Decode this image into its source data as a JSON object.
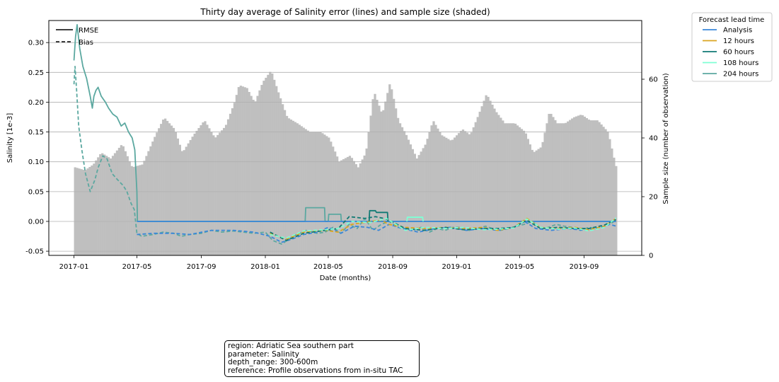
{
  "chart_data": {
    "type": "line",
    "title": "Thirty day average of Salinity error (lines) and sample size (shaded)",
    "xlabel": "Date (months)",
    "ylabel": "Salinity [1e-3]",
    "ylabel_right": "Sample size (number of observation)",
    "xlim": [
      "2016-11-14",
      "2019-12-20"
    ],
    "ylim": [
      -0.057,
      0.337
    ],
    "ylim_right": [
      0,
      80
    ],
    "x_ticks": [
      "2017-01",
      "2017-05",
      "2017-09",
      "2018-01",
      "2018-05",
      "2018-09",
      "2019-01",
      "2019-05",
      "2019-09"
    ],
    "y_ticks": [
      "-0.05",
      "0.00",
      "0.05",
      "0.10",
      "0.15",
      "0.20",
      "0.25",
      "0.30"
    ],
    "y_ticks_right": [
      "0",
      "20",
      "40",
      "60"
    ],
    "grid": "horizontal",
    "style_legend": {
      "placement": "top-left",
      "entries": [
        {
          "label": "RMSE",
          "style": "solid"
        },
        {
          "label": "Bias",
          "style": "dashed"
        }
      ]
    },
    "legend": {
      "title": "Forecast lead time",
      "placement": "outside-right",
      "entries": [
        "Analysis",
        "12 hours",
        "60 hours",
        "108 hours",
        "204 hours"
      ]
    },
    "series_colors": {
      "Analysis": "#3a87d9",
      "12 hours": "#daa520",
      "60 hours": "#117a74",
      "108 hours": "#7fffd4",
      "204 hours": "#5ba8a0"
    },
    "sample_size": {
      "color": "#bfbfbf",
      "points": [
        [
          "2017-01-01",
          30
        ],
        [
          "2017-01-20",
          29
        ],
        [
          "2017-02-05",
          31
        ],
        [
          "2017-02-20",
          35
        ],
        [
          "2017-03-10",
          33
        ],
        [
          "2017-04-01",
          38
        ],
        [
          "2017-04-20",
          30
        ],
        [
          "2017-05-10",
          31
        ],
        [
          "2017-06-01",
          40
        ],
        [
          "2017-06-20",
          47
        ],
        [
          "2017-07-10",
          43
        ],
        [
          "2017-07-25",
          35
        ],
        [
          "2017-08-15",
          41
        ],
        [
          "2017-09-05",
          46
        ],
        [
          "2017-09-25",
          40
        ],
        [
          "2017-10-15",
          44
        ],
        [
          "2017-11-01",
          52
        ],
        [
          "2017-11-10",
          58
        ],
        [
          "2017-11-25",
          57
        ],
        [
          "2017-12-10",
          52
        ],
        [
          "2017-12-25",
          59
        ],
        [
          "2018-01-10",
          63
        ],
        [
          "2018-01-25",
          55
        ],
        [
          "2018-02-10",
          47
        ],
        [
          "2018-03-01",
          45
        ],
        [
          "2018-03-25",
          42
        ],
        [
          "2018-04-15",
          42
        ],
        [
          "2018-05-01",
          40
        ],
        [
          "2018-05-20",
          32
        ],
        [
          "2018-06-10",
          34
        ],
        [
          "2018-06-25",
          30
        ],
        [
          "2018-07-10",
          35
        ],
        [
          "2018-07-25",
          56
        ],
        [
          "2018-08-10",
          48
        ],
        [
          "2018-08-25",
          59
        ],
        [
          "2018-09-10",
          46
        ],
        [
          "2018-09-25",
          41
        ],
        [
          "2018-10-15",
          33
        ],
        [
          "2018-11-01",
          38
        ],
        [
          "2018-11-15",
          46
        ],
        [
          "2018-12-01",
          41
        ],
        [
          "2018-12-20",
          39
        ],
        [
          "2019-01-10",
          43
        ],
        [
          "2019-01-25",
          41
        ],
        [
          "2019-02-10",
          48
        ],
        [
          "2019-02-25",
          55
        ],
        [
          "2019-03-15",
          49
        ],
        [
          "2019-04-01",
          45
        ],
        [
          "2019-04-20",
          45
        ],
        [
          "2019-05-10",
          42
        ],
        [
          "2019-05-25",
          35
        ],
        [
          "2019-06-10",
          37
        ],
        [
          "2019-06-25",
          49
        ],
        [
          "2019-07-10",
          45
        ],
        [
          "2019-07-25",
          45
        ],
        [
          "2019-08-10",
          47
        ],
        [
          "2019-08-25",
          48
        ],
        [
          "2019-09-10",
          46
        ],
        [
          "2019-09-25",
          46
        ],
        [
          "2019-10-15",
          42
        ],
        [
          "2019-10-25",
          34
        ],
        [
          "2019-11-01",
          29
        ]
      ]
    },
    "series": [
      {
        "name": "204 hours",
        "metric": "RMSE",
        "style": "solid",
        "color": "#5ba8a0",
        "x": [
          "2017-01-01",
          "2017-01-04",
          "2017-01-07",
          "2017-01-12",
          "2017-01-18",
          "2017-01-25",
          "2017-02-01",
          "2017-02-05",
          "2017-02-08",
          "2017-02-12",
          "2017-02-16",
          "2017-02-22",
          "2017-03-02",
          "2017-03-08",
          "2017-03-16",
          "2017-03-24",
          "2017-04-01",
          "2017-04-08",
          "2017-04-15",
          "2017-04-22",
          "2017-04-27",
          "2017-05-01",
          "2017-05-02",
          "2018-03-18",
          "2018-03-19",
          "2018-04-24",
          "2018-04-25",
          "2018-05-01",
          "2018-05-02",
          "2018-05-25",
          "2018-05-26",
          "2019-11-01"
        ],
        "y": [
          0.27,
          0.31,
          0.33,
          0.29,
          0.26,
          0.24,
          0.21,
          0.19,
          0.21,
          0.22,
          0.225,
          0.21,
          0.2,
          0.19,
          0.18,
          0.175,
          0.16,
          0.165,
          0.15,
          0.14,
          0.12,
          0.05,
          0.0,
          0.0,
          0.023,
          0.023,
          0.0,
          0.0,
          0.012,
          0.012,
          0.0,
          0.0
        ]
      },
      {
        "name": "204 hours",
        "metric": "Bias",
        "style": "dashed",
        "color": "#5ba8a0",
        "x": [
          "2017-01-01",
          "2017-01-03",
          "2017-01-06",
          "2017-01-10",
          "2017-01-16",
          "2017-01-23",
          "2017-02-01",
          "2017-02-10",
          "2017-02-16",
          "2017-02-25",
          "2017-03-05",
          "2017-03-15",
          "2017-03-25",
          "2017-04-05",
          "2017-04-12",
          "2017-04-20",
          "2017-04-26",
          "2017-05-01",
          "2017-05-10",
          "2017-06-01",
          "2017-06-20",
          "2017-07-10",
          "2017-07-25",
          "2017-08-10",
          "2017-09-01",
          "2017-09-20",
          "2017-10-10",
          "2017-11-01",
          "2017-11-20",
          "2017-12-10",
          "2018-01-01",
          "2018-01-15",
          "2018-02-01",
          "2018-02-15",
          "2018-03-01",
          "2018-03-20",
          "2018-04-10",
          "2018-04-25",
          "2018-05-10",
          "2018-05-25",
          "2018-06-10",
          "2018-06-25",
          "2018-07-10",
          "2018-07-25",
          "2018-08-10",
          "2018-08-25",
          "2018-09-10",
          "2018-09-25",
          "2018-10-10",
          "2018-10-25",
          "2018-11-10",
          "2018-11-25",
          "2018-12-10",
          "2018-12-25",
          "2019-01-10",
          "2019-01-25",
          "2019-02-10",
          "2019-02-25",
          "2019-03-10",
          "2019-03-25",
          "2019-04-10",
          "2019-04-25",
          "2019-05-10",
          "2019-05-25",
          "2019-06-10",
          "2019-06-25",
          "2019-07-10",
          "2019-07-25",
          "2019-08-10",
          "2019-08-25",
          "2019-09-10",
          "2019-09-25",
          "2019-10-10",
          "2019-10-25",
          "2019-11-01"
        ],
        "y": [
          0.23,
          0.26,
          0.22,
          0.16,
          0.12,
          0.08,
          0.05,
          0.07,
          0.09,
          0.11,
          0.105,
          0.08,
          0.07,
          0.06,
          0.05,
          0.03,
          0.02,
          -0.02,
          -0.025,
          -0.022,
          -0.018,
          -0.02,
          -0.025,
          -0.022,
          -0.02,
          -0.015,
          -0.018,
          -0.016,
          -0.018,
          -0.02,
          -0.018,
          -0.032,
          -0.038,
          -0.03,
          -0.022,
          -0.015,
          -0.02,
          -0.018,
          -0.01,
          -0.02,
          -0.005,
          -0.012,
          0.005,
          -0.015,
          -0.005,
          0.0,
          -0.01,
          -0.012,
          -0.015,
          -0.01,
          -0.018,
          -0.012,
          -0.015,
          -0.01,
          -0.01,
          -0.015,
          -0.012,
          -0.008,
          -0.012,
          -0.015,
          -0.012,
          -0.008,
          -0.005,
          0.0,
          -0.012,
          -0.01,
          -0.005,
          -0.008,
          -0.01,
          -0.015,
          -0.01,
          -0.012,
          -0.008,
          -0.002,
          0.002
        ]
      },
      {
        "name": "Analysis",
        "metric": "RMSE",
        "style": "solid",
        "color": "#3a87d9",
        "x": [
          "2017-05-01",
          "2019-11-01"
        ],
        "y": [
          0.0,
          0.0
        ]
      },
      {
        "name": "Analysis",
        "metric": "Bias",
        "style": "dashed",
        "color": "#3a87d9",
        "x": [
          "2017-05-01",
          "2017-06-01",
          "2017-07-10",
          "2017-08-10",
          "2017-09-20",
          "2017-11-01",
          "2017-12-10",
          "2018-01-10",
          "2018-02-01",
          "2018-02-20",
          "2018-03-15",
          "2018-04-10",
          "2018-05-01",
          "2018-05-25",
          "2018-06-20",
          "2018-07-15",
          "2018-08-05",
          "2018-08-25",
          "2018-09-20",
          "2018-10-20",
          "2018-11-20",
          "2018-12-20",
          "2019-01-20",
          "2019-02-20",
          "2019-03-20",
          "2019-04-20",
          "2019-05-10",
          "2019-06-01",
          "2019-07-01",
          "2019-08-01",
          "2019-09-01",
          "2019-10-01",
          "2019-10-20",
          "2019-11-01"
        ],
        "y": [
          -0.022,
          -0.02,
          -0.02,
          -0.022,
          -0.015,
          -0.015,
          -0.018,
          -0.025,
          -0.035,
          -0.03,
          -0.022,
          -0.018,
          -0.01,
          -0.02,
          -0.008,
          -0.01,
          -0.015,
          -0.005,
          -0.012,
          -0.018,
          -0.012,
          -0.01,
          -0.015,
          -0.012,
          -0.015,
          -0.01,
          0.0,
          -0.012,
          -0.015,
          -0.012,
          -0.015,
          -0.01,
          -0.005,
          -0.008
        ]
      },
      {
        "name": "12 hours",
        "metric": "Bias",
        "style": "dashed",
        "color": "#daa520",
        "x": [
          "2018-01-10",
          "2018-02-10",
          "2018-03-15",
          "2018-04-25",
          "2018-05-20",
          "2018-06-15",
          "2018-07-20",
          "2018-08-10",
          "2018-08-25",
          "2018-09-25",
          "2018-11-01",
          "2018-12-10",
          "2019-01-15",
          "2019-02-20",
          "2019-03-20",
          "2019-04-20",
          "2019-05-15",
          "2019-06-10",
          "2019-07-15",
          "2019-08-15",
          "2019-09-10",
          "2019-10-10",
          "2019-11-01"
        ],
        "y": [
          -0.02,
          -0.03,
          -0.018,
          -0.015,
          -0.018,
          -0.005,
          0.0,
          0.002,
          -0.005,
          -0.01,
          -0.012,
          -0.01,
          -0.012,
          -0.01,
          -0.015,
          -0.01,
          0.005,
          -0.01,
          -0.012,
          -0.01,
          -0.014,
          -0.008,
          0.005
        ]
      },
      {
        "name": "60 hours",
        "metric": "RMSE",
        "style": "solid",
        "color": "#117a74",
        "x": [
          "2018-07-18",
          "2018-07-19",
          "2018-07-30",
          "2018-08-01",
          "2018-08-22",
          "2018-08-23"
        ],
        "y": [
          0.0,
          0.018,
          0.018,
          0.015,
          0.015,
          0.0
        ]
      },
      {
        "name": "60 hours",
        "metric": "Bias",
        "style": "dashed",
        "color": "#117a74",
        "x": [
          "2018-01-10",
          "2018-02-10",
          "2018-03-15",
          "2018-04-25",
          "2018-05-20",
          "2018-06-10",
          "2018-07-10",
          "2018-07-30",
          "2018-08-20",
          "2018-09-25",
          "2018-11-01",
          "2018-12-10",
          "2019-01-15",
          "2019-02-20",
          "2019-03-20",
          "2019-04-20",
          "2019-05-15",
          "2019-06-10",
          "2019-07-15",
          "2019-08-15",
          "2019-09-10",
          "2019-10-10",
          "2019-11-01"
        ],
        "y": [
          -0.018,
          -0.032,
          -0.02,
          -0.015,
          -0.012,
          0.008,
          0.005,
          0.008,
          0.004,
          -0.012,
          -0.015,
          -0.01,
          -0.014,
          -0.012,
          -0.012,
          -0.01,
          0.002,
          -0.012,
          -0.01,
          -0.012,
          -0.012,
          -0.006,
          0.003
        ]
      },
      {
        "name": "108 hours",
        "metric": "RMSE",
        "style": "solid",
        "color": "#7fffd4",
        "x": [
          "2018-09-28",
          "2018-09-29",
          "2018-10-28",
          "2018-10-29"
        ],
        "y": [
          0.0,
          0.007,
          0.007,
          0.0
        ]
      },
      {
        "name": "108 hours",
        "metric": "Bias",
        "style": "dashed",
        "color": "#7fffd4",
        "x": [
          "2018-01-10",
          "2018-02-10",
          "2018-03-15",
          "2018-04-25",
          "2018-05-20",
          "2018-06-15",
          "2018-07-20",
          "2018-08-20",
          "2018-09-25",
          "2018-11-01",
          "2018-12-10",
          "2019-01-15",
          "2019-02-20",
          "2019-03-20",
          "2019-04-20",
          "2019-05-15",
          "2019-06-10",
          "2019-07-15",
          "2019-08-15",
          "2019-09-10",
          "2019-10-10",
          "2019-11-01"
        ],
        "y": [
          -0.022,
          -0.028,
          -0.016,
          -0.014,
          -0.012,
          0.0,
          -0.002,
          0.005,
          -0.015,
          -0.01,
          -0.012,
          -0.01,
          -0.014,
          -0.013,
          -0.011,
          0.004,
          -0.01,
          -0.013,
          -0.011,
          -0.016,
          -0.01,
          0.006
        ]
      }
    ]
  },
  "info_box": {
    "lines": [
      "region: Adriatic Sea southern part",
      "parameter: Salinity",
      "depth_range: 300-600m",
      "reference: Profile observations from in-situ TAC"
    ]
  }
}
